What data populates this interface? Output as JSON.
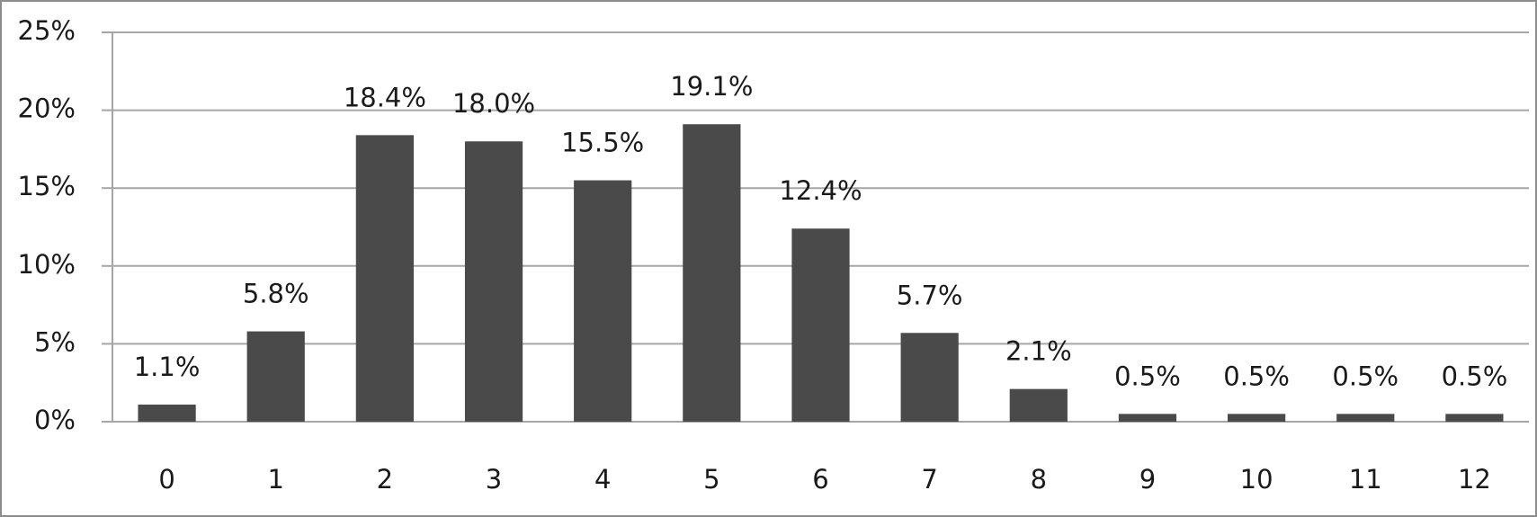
{
  "chart_data": {
    "type": "bar",
    "categories": [
      "0",
      "1",
      "2",
      "3",
      "4",
      "5",
      "6",
      "7",
      "8",
      "9",
      "10",
      "11",
      "12"
    ],
    "values": [
      1.1,
      5.8,
      18.4,
      18.0,
      15.5,
      19.1,
      12.4,
      5.7,
      2.1,
      0.5,
      0.5,
      0.5,
      0.5
    ],
    "value_labels": [
      "1.1%",
      "5.8%",
      "18.4%",
      "18.0%",
      "15.5%",
      "19.1%",
      "12.4%",
      "5.7%",
      "2.1%",
      "0.5%",
      "0.5%",
      "0.5%",
      "0.5%"
    ],
    "color": "#4a4a4a",
    "ylim": [
      0,
      25
    ],
    "yticks": [
      {
        "value": 0,
        "label": "0%"
      },
      {
        "value": 5,
        "label": "5%"
      },
      {
        "value": 10,
        "label": "10%"
      },
      {
        "value": 15,
        "label": "15%"
      },
      {
        "value": 20,
        "label": "20%"
      },
      {
        "value": 25,
        "label": "25%"
      }
    ],
    "grid": true
  }
}
